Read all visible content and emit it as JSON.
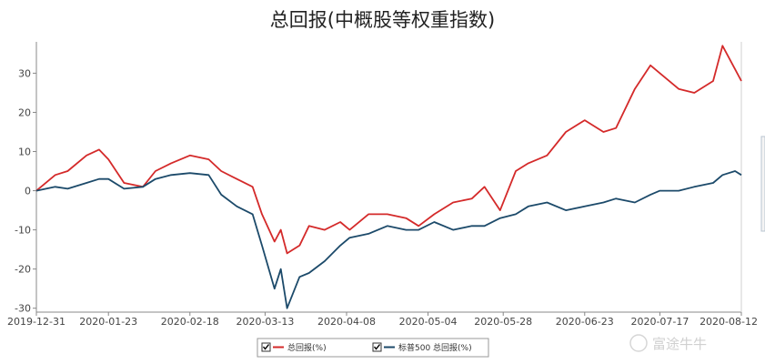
{
  "title": "总回报(中概股等权重指数)",
  "watermark": "富途牛牛",
  "colors": {
    "series_red": "#d42a2a",
    "series_blue": "#1c4a6a",
    "axis": "#888888",
    "grid": "#e6e6e6"
  },
  "chart_data": {
    "type": "line",
    "title": "总回报(中概股等权重指数)",
    "xlabel": "",
    "ylabel": "",
    "ylim": [
      -31,
      38
    ],
    "yticks": [
      -30,
      -20,
      -10,
      0,
      10,
      20,
      30
    ],
    "grid": false,
    "legend_position": "bottom",
    "x_tick_labels": [
      "2019-12-31",
      "2020-01-23",
      "2020-02-18",
      "2020-03-13",
      "2020-04-08",
      "2020-05-04",
      "2020-05-28",
      "2020-06-23",
      "2020-07-17",
      "2020-08-12"
    ],
    "x": [
      "2019-12-31",
      "2020-01-06",
      "2020-01-10",
      "2020-01-16",
      "2020-01-20",
      "2020-01-23",
      "2020-01-28",
      "2020-02-03",
      "2020-02-07",
      "2020-02-12",
      "2020-02-18",
      "2020-02-24",
      "2020-02-28",
      "2020-03-04",
      "2020-03-09",
      "2020-03-12",
      "2020-03-16",
      "2020-03-18",
      "2020-03-20",
      "2020-03-24",
      "2020-03-27",
      "2020-04-01",
      "2020-04-06",
      "2020-04-09",
      "2020-04-15",
      "2020-04-21",
      "2020-04-27",
      "2020-05-01",
      "2020-05-06",
      "2020-05-12",
      "2020-05-18",
      "2020-05-22",
      "2020-05-27",
      "2020-06-01",
      "2020-06-05",
      "2020-06-11",
      "2020-06-17",
      "2020-06-23",
      "2020-06-29",
      "2020-07-03",
      "2020-07-09",
      "2020-07-14",
      "2020-07-17",
      "2020-07-23",
      "2020-07-28",
      "2020-08-03",
      "2020-08-06",
      "2020-08-10",
      "2020-08-12"
    ],
    "series": [
      {
        "name": "总回报(%)",
        "color": "#d42a2a",
        "values": [
          0,
          4,
          5,
          9,
          10.5,
          8,
          2,
          1,
          5,
          7,
          9,
          8,
          5,
          3,
          1,
          -6,
          -13,
          -10,
          -16,
          -14,
          -9,
          -10,
          -8,
          -10,
          -6,
          -6,
          -7,
          -9,
          -6,
          -3,
          -2,
          1,
          -5,
          5,
          7,
          9,
          15,
          18,
          15,
          16,
          26,
          32,
          30,
          26,
          25,
          28,
          37,
          31,
          28
        ]
      },
      {
        "name": "标普500 总回报(%)",
        "color": "#1c4a6a",
        "values": [
          0,
          1,
          0.5,
          2,
          3,
          3,
          0.5,
          1,
          3,
          4,
          4.5,
          4,
          -1,
          -4,
          -6,
          -14,
          -25,
          -20,
          -30,
          -22,
          -21,
          -18,
          -14,
          -12,
          -11,
          -9,
          -10,
          -10,
          -8,
          -10,
          -9,
          -9,
          -7,
          -6,
          -4,
          -3,
          -5,
          -4,
          -3,
          -2,
          -3,
          -1,
          0,
          0,
          1,
          2,
          4,
          5,
          4
        ]
      }
    ]
  }
}
